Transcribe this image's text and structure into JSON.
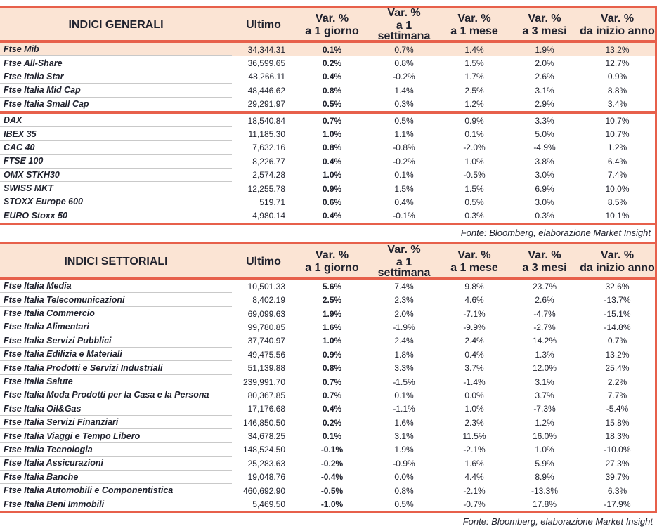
{
  "colors": {
    "accent_red": "#e7604b",
    "header_bg": "#fbe4d4",
    "highlight_row_bg": "#fbe4d4",
    "text": "#20222e",
    "grid_gray": "#c9c9c9"
  },
  "columns": [
    {
      "top": "Ultimo",
      "bottom": ""
    },
    {
      "top": "Var. %",
      "bottom": "a 1 giorno"
    },
    {
      "top": "Var. %",
      "bottom": "a 1 settimana"
    },
    {
      "top": "Var. %",
      "bottom": "a 1 mese"
    },
    {
      "top": "Var. %",
      "bottom": "a 3 mesi"
    },
    {
      "top": "Var. %",
      "bottom": "da inizio anno"
    }
  ],
  "tables": [
    {
      "title": "INDICI GENERALI",
      "source": "Fonte: Bloomberg, elaborazione Market Insight",
      "groups": [
        {
          "rows": [
            {
              "name": "Ftse Mib",
              "highlight": true,
              "values": [
                "34,344.31",
                "0.1%",
                "0.7%",
                "1.4%",
                "1.9%",
                "13.2%"
              ]
            },
            {
              "name": "Ftse All-Share",
              "values": [
                "36,599.65",
                "0.2%",
                "0.8%",
                "1.5%",
                "2.0%",
                "12.7%"
              ]
            },
            {
              "name": "Ftse Italia Star",
              "values": [
                "48,266.11",
                "0.4%",
                "-0.2%",
                "1.7%",
                "2.6%",
                "0.9%"
              ]
            },
            {
              "name": "Ftse Italia Mid Cap",
              "values": [
                "48,446.62",
                "0.8%",
                "1.4%",
                "2.5%",
                "3.1%",
                "8.8%"
              ]
            },
            {
              "name": "Ftse Italia Small Cap",
              "values": [
                "29,291.97",
                "0.5%",
                "0.3%",
                "1.2%",
                "2.9%",
                "3.4%"
              ]
            }
          ]
        },
        {
          "rows": [
            {
              "name": "DAX",
              "values": [
                "18,540.84",
                "0.7%",
                "0.5%",
                "0.9%",
                "3.3%",
                "10.7%"
              ]
            },
            {
              "name": "IBEX 35",
              "values": [
                "11,185.30",
                "1.0%",
                "1.1%",
                "0.1%",
                "5.0%",
                "10.7%"
              ]
            },
            {
              "name": "CAC 40",
              "values": [
                "7,632.16",
                "0.8%",
                "-0.8%",
                "-2.0%",
                "-4.9%",
                "1.2%"
              ]
            },
            {
              "name": "FTSE 100",
              "values": [
                "8,226.77",
                "0.4%",
                "-0.2%",
                "1.0%",
                "3.8%",
                "6.4%"
              ]
            },
            {
              "name": "OMX STKH30",
              "values": [
                "2,574.28",
                "1.0%",
                "0.1%",
                "-0.5%",
                "3.0%",
                "7.4%"
              ]
            },
            {
              "name": "SWISS MKT",
              "values": [
                "12,255.78",
                "0.9%",
                "1.5%",
                "1.5%",
                "6.9%",
                "10.0%"
              ]
            },
            {
              "name": "STOXX Europe 600",
              "values": [
                "519.71",
                "0.6%",
                "0.4%",
                "0.5%",
                "3.0%",
                "8.5%"
              ]
            },
            {
              "name": "EURO Stoxx 50",
              "values": [
                "4,980.14",
                "0.4%",
                "-0.1%",
                "0.3%",
                "0.3%",
                "10.1%"
              ]
            }
          ]
        }
      ]
    },
    {
      "title": "INDICI SETTORIALI",
      "source": "Fonte: Bloomberg, elaborazione Market Insight",
      "groups": [
        {
          "rows": [
            {
              "name": "Ftse Italia Media",
              "values": [
                "10,501.33",
                "5.6%",
                "7.4%",
                "9.8%",
                "23.7%",
                "32.6%"
              ]
            },
            {
              "name": "Ftse Italia Telecomunicazioni",
              "values": [
                "8,402.19",
                "2.5%",
                "2.3%",
                "4.6%",
                "2.6%",
                "-13.7%"
              ]
            },
            {
              "name": "Ftse Italia Commercio",
              "values": [
                "69,099.63",
                "1.9%",
                "2.0%",
                "-7.1%",
                "-4.7%",
                "-15.1%"
              ]
            },
            {
              "name": "Ftse Italia Alimentari",
              "values": [
                "99,780.85",
                "1.6%",
                "-1.9%",
                "-9.9%",
                "-2.7%",
                "-14.8%"
              ]
            },
            {
              "name": "Ftse Italia Servizi Pubblici",
              "values": [
                "37,740.97",
                "1.0%",
                "2.4%",
                "2.4%",
                "14.2%",
                "0.7%"
              ]
            },
            {
              "name": "Ftse Italia Edilizia e Materiali",
              "values": [
                "49,475.56",
                "0.9%",
                "1.8%",
                "0.4%",
                "1.3%",
                "13.2%"
              ]
            },
            {
              "name": "Ftse Italia Prodotti e Servizi Industriali",
              "values": [
                "51,139.88",
                "0.8%",
                "3.3%",
                "3.7%",
                "12.0%",
                "25.4%"
              ]
            },
            {
              "name": "Ftse Italia Salute",
              "values": [
                "239,991.70",
                "0.7%",
                "-1.5%",
                "-1.4%",
                "3.1%",
                "2.2%"
              ]
            },
            {
              "name": "Ftse Italia Moda Prodotti per la Casa e la Persona",
              "values": [
                "80,367.85",
                "0.7%",
                "0.1%",
                "0.0%",
                "3.7%",
                "7.7%"
              ]
            },
            {
              "name": "Ftse Italia Oil&Gas",
              "values": [
                "17,176.68",
                "0.4%",
                "-1.1%",
                "1.0%",
                "-7.3%",
                "-5.4%"
              ]
            },
            {
              "name": "Ftse Italia Servizi Finanziari",
              "values": [
                "146,850.50",
                "0.2%",
                "1.6%",
                "2.3%",
                "1.2%",
                "15.8%"
              ]
            },
            {
              "name": "Ftse Italia Viaggi e Tempo Libero",
              "values": [
                "34,678.25",
                "0.1%",
                "3.1%",
                "11.5%",
                "16.0%",
                "18.3%"
              ]
            },
            {
              "name": "Ftse Italia Tecnologia",
              "values": [
                "148,524.50",
                "-0.1%",
                "1.9%",
                "-2.1%",
                "1.0%",
                "-10.0%"
              ]
            },
            {
              "name": "Ftse Italia Assicurazioni",
              "values": [
                "25,283.63",
                "-0.2%",
                "-0.9%",
                "1.6%",
                "5.9%",
                "27.3%"
              ]
            },
            {
              "name": "Ftse Italia Banche",
              "values": [
                "19,048.76",
                "-0.4%",
                "0.0%",
                "4.4%",
                "8.9%",
                "39.7%"
              ]
            },
            {
              "name": "Ftse Italia Automobili e Componentistica",
              "values": [
                "460,692.90",
                "-0.5%",
                "0.8%",
                "-2.1%",
                "-13.3%",
                "6.3%"
              ]
            },
            {
              "name": "Ftse Italia Beni Immobili",
              "values": [
                "5,469.50",
                "-1.0%",
                "0.5%",
                "-0.7%",
                "17.8%",
                "-17.9%"
              ]
            }
          ]
        }
      ]
    }
  ]
}
